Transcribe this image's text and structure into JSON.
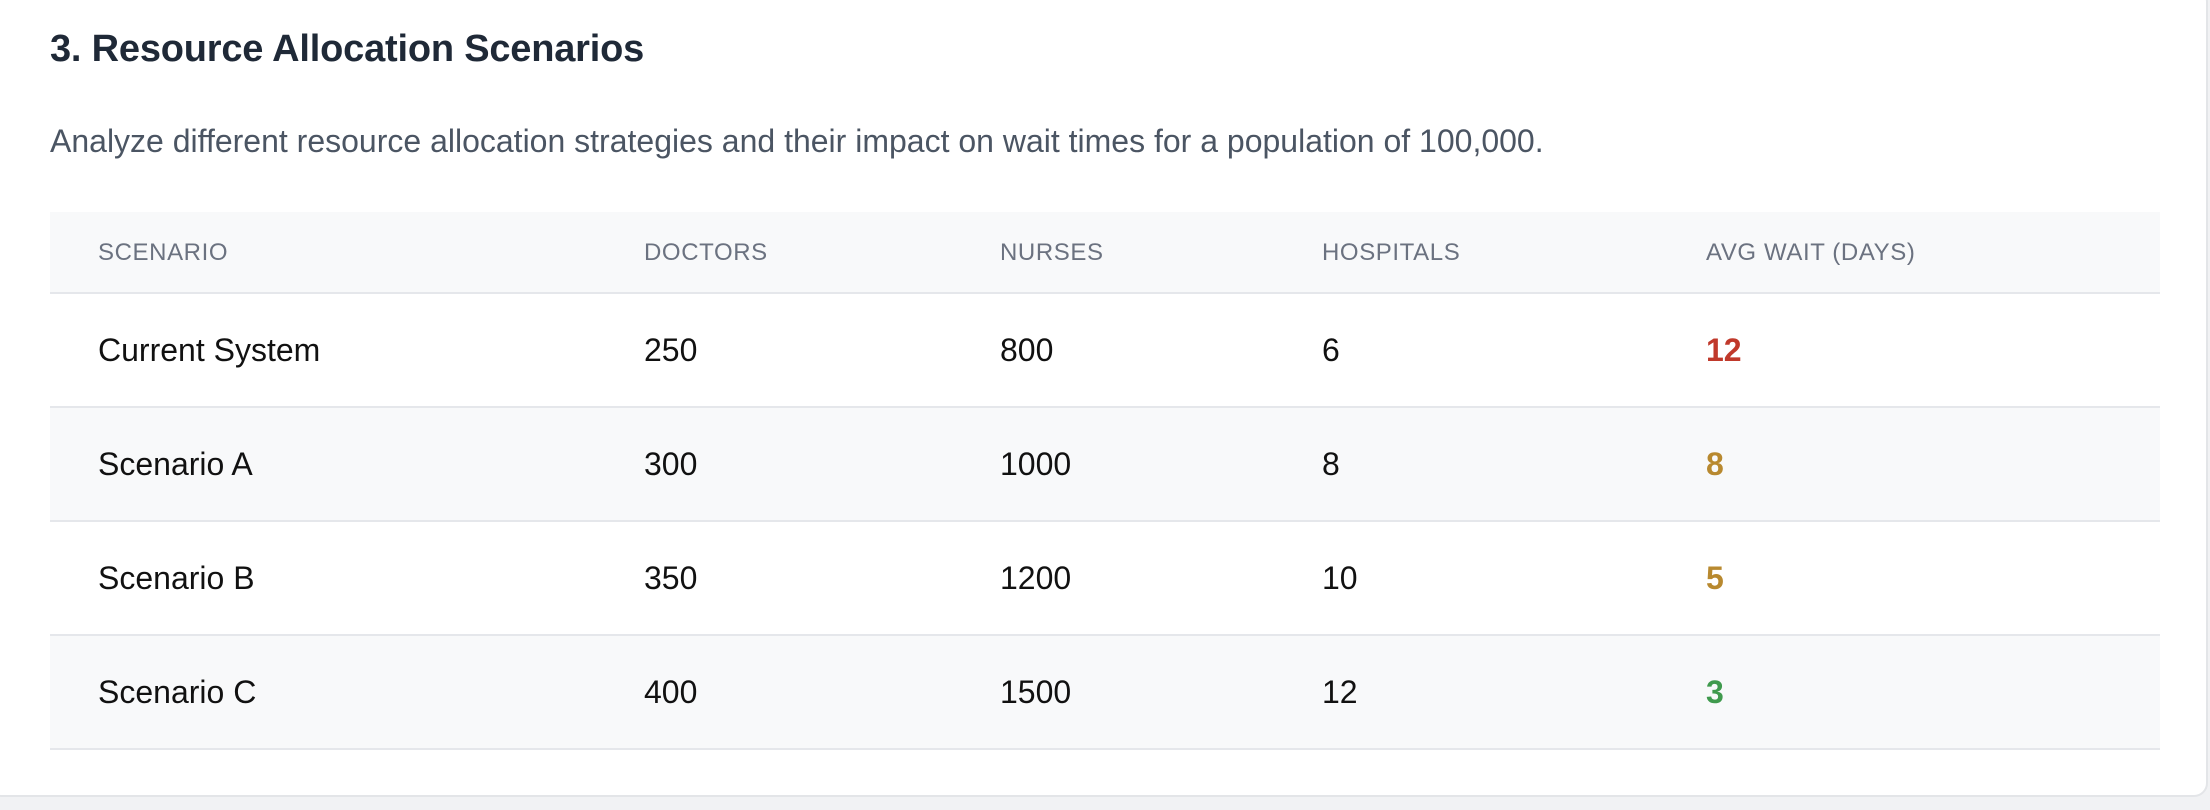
{
  "section": {
    "title": "3. Resource Allocation Scenarios",
    "description": "Analyze different resource allocation strategies and their impact on wait times for a population of 100,000."
  },
  "table": {
    "columns": [
      "SCENARIO",
      "DOCTORS",
      "NURSES",
      "HOSPITALS",
      "AVG WAIT (DAYS)"
    ],
    "rows": [
      {
        "scenario": "Current System",
        "doctors": "250",
        "nurses": "800",
        "hospitals": "6",
        "avg_wait": "12",
        "wait_color": "#c0392b"
      },
      {
        "scenario": "Scenario A",
        "doctors": "300",
        "nurses": "1000",
        "hospitals": "8",
        "avg_wait": "8",
        "wait_color": "#b8892f"
      },
      {
        "scenario": "Scenario B",
        "doctors": "350",
        "nurses": "1200",
        "hospitals": "10",
        "avg_wait": "5",
        "wait_color": "#b8892f"
      },
      {
        "scenario": "Scenario C",
        "doctors": "400",
        "nurses": "1500",
        "hospitals": "12",
        "avg_wait": "3",
        "wait_color": "#3f9a4d"
      }
    ]
  }
}
